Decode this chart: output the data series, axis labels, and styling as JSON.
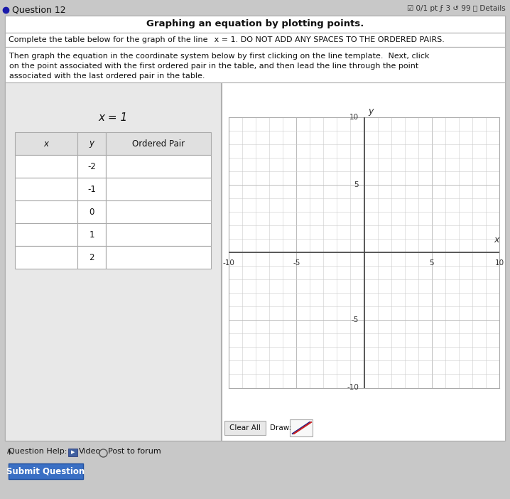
{
  "title_text": "Graphing an equation by plotting points.",
  "subtitle_text": "Complete the table below for the graph of the line x = 1. DO NOT ADD ANY SPACES TO THE ORDERED PAIRS.",
  "body_text_line1": "Then graph the equation in the coordinate system below by first clicking on the line template.  Next, click",
  "body_text_line2": "on the point associated with the first ordered pair in the table, and then lead the line through the point",
  "body_text_line3": "associated with the last ordered pair in the table.",
  "equation_text": "x = 1",
  "header_row": [
    "x",
    "y",
    "Ordered Pair"
  ],
  "y_values": [
    "-2",
    "-1",
    "0",
    "1",
    "2"
  ],
  "question_label": "Question 12",
  "score_label": "0/1 pt  3  99   Details",
  "question_help": "Question Help:  Video   Post to forum",
  "submit_text": "Submit Question",
  "clear_all_text": "Clear All",
  "draw_text": "Draw:",
  "outer_bg": "#c8c8c8",
  "main_box_bg": "#f0f0f0",
  "title_bg": "#ffffff",
  "subtitle_bg": "#ffffff",
  "body_bg": "#ffffff",
  "content_bg": "#e8e8e8",
  "left_panel_bg": "#e8e8e8",
  "graph_bg": "#ffffff",
  "table_header_bg": "#e0e0e0",
  "table_cell_bg": "#ffffff",
  "table_border": "#aaaaaa",
  "grid_minor_color": "#cccccc",
  "grid_major_color": "#bbbbbb",
  "axis_line_color": "#444444",
  "tick_label_color": "#333333",
  "button_bg": "#e8e8e8",
  "button_border": "#aaaaaa",
  "draw_box_bg": "#f8f8f8",
  "draw_box_border": "#aaaaaa",
  "draw_line_color1": "#cc2222",
  "draw_line_color2": "#222288",
  "submit_bg": "#3a6fc4",
  "submit_text_color": "#ffffff",
  "bullet_color": "#1a1aaa"
}
